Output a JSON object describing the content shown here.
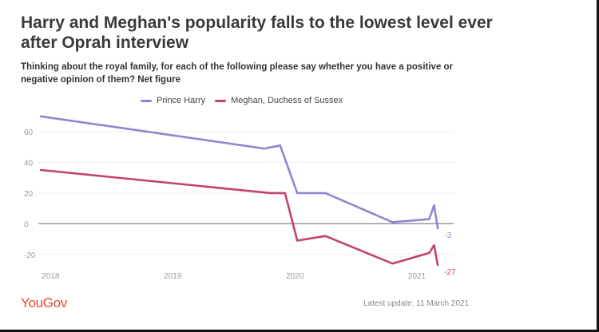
{
  "title": "Harry and Meghan's popularity falls to the lowest level ever after Oprah interview",
  "subtitle": "Thinking about the royal family, for each of the following please say whether you have a positive or negative opinion of them? Net figure",
  "logo": "YouGov",
  "last_update": "Latest update: 11 March 2021",
  "colors": {
    "harry": "#8e86d0",
    "meghan": "#c4406f",
    "axis": "#9a9a9a",
    "grid": "#ececec"
  },
  "chart_data": {
    "type": "line",
    "title": "Harry and Meghan's popularity falls to the lowest level ever after Oprah interview",
    "xlabel": "",
    "ylabel": "",
    "x_ticks": [
      2018,
      2019,
      2020,
      2021
    ],
    "y_ticks": [
      -20,
      0,
      20,
      40,
      60
    ],
    "xlim": [
      2017.9,
      2021.3
    ],
    "ylim": [
      -30,
      73
    ],
    "legend_position": "top",
    "series": [
      {
        "name": "Prince Harry",
        "color": "#8e86d0",
        "points": [
          [
            2017.92,
            70
          ],
          [
            2019.75,
            49
          ],
          [
            2019.88,
            51
          ],
          [
            2020.02,
            20
          ],
          [
            2020.25,
            20
          ],
          [
            2020.8,
            1
          ],
          [
            2021.1,
            3
          ],
          [
            2021.14,
            12
          ],
          [
            2021.17,
            -3
          ]
        ],
        "end_label": "-3"
      },
      {
        "name": "Meghan, Duchess of Sussex",
        "color": "#c4406f",
        "points": [
          [
            2017.92,
            35
          ],
          [
            2019.8,
            20
          ],
          [
            2019.92,
            20
          ],
          [
            2020.02,
            -11
          ],
          [
            2020.25,
            -8
          ],
          [
            2020.8,
            -26
          ],
          [
            2021.1,
            -19
          ],
          [
            2021.14,
            -14
          ],
          [
            2021.17,
            -27
          ]
        ],
        "end_label": "-27"
      }
    ]
  }
}
